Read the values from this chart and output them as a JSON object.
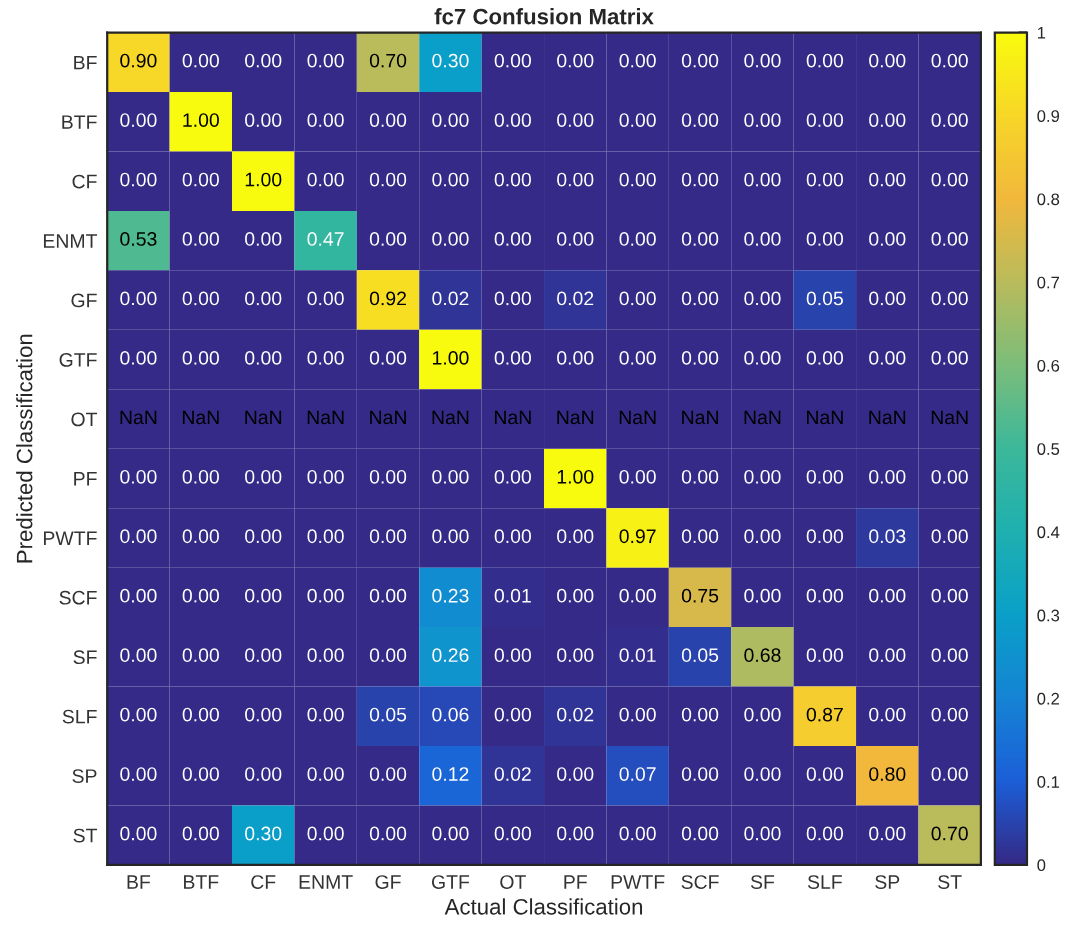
{
  "chart_data": {
    "type": "heatmap",
    "title": "fc7 Confusion Matrix",
    "xlabel": "Actual Classification",
    "ylabel": "Predicted Classification",
    "categories": [
      "BF",
      "BTF",
      "CF",
      "ENMT",
      "GF",
      "GTF",
      "OT",
      "PF",
      "PWTF",
      "SCF",
      "SF",
      "SLF",
      "SP",
      "ST"
    ],
    "y_categories": [
      "BF",
      "BTF",
      "CF",
      "ENMT",
      "GF",
      "GTF",
      "OT",
      "PF",
      "PWTF",
      "SCF",
      "SF",
      "SLF",
      "SP",
      "ST"
    ],
    "cells": [
      [
        0.9,
        0.0,
        0.0,
        0.0,
        0.7,
        0.3,
        0.0,
        0.0,
        0.0,
        0.0,
        0.0,
        0.0,
        0.0,
        0.0
      ],
      [
        0.0,
        1.0,
        0.0,
        0.0,
        0.0,
        0.0,
        0.0,
        0.0,
        0.0,
        0.0,
        0.0,
        0.0,
        0.0,
        0.0
      ],
      [
        0.0,
        0.0,
        1.0,
        0.0,
        0.0,
        0.0,
        0.0,
        0.0,
        0.0,
        0.0,
        0.0,
        0.0,
        0.0,
        0.0
      ],
      [
        0.53,
        0.0,
        0.0,
        0.47,
        0.0,
        0.0,
        0.0,
        0.0,
        0.0,
        0.0,
        0.0,
        0.0,
        0.0,
        0.0
      ],
      [
        0.0,
        0.0,
        0.0,
        0.0,
        0.92,
        0.02,
        0.0,
        0.02,
        0.0,
        0.0,
        0.0,
        0.05,
        0.0,
        0.0
      ],
      [
        0.0,
        0.0,
        0.0,
        0.0,
        0.0,
        1.0,
        0.0,
        0.0,
        0.0,
        0.0,
        0.0,
        0.0,
        0.0,
        0.0
      ],
      [
        null,
        null,
        null,
        null,
        null,
        null,
        null,
        null,
        null,
        null,
        null,
        null,
        null,
        null
      ],
      [
        0.0,
        0.0,
        0.0,
        0.0,
        0.0,
        0.0,
        0.0,
        1.0,
        0.0,
        0.0,
        0.0,
        0.0,
        0.0,
        0.0
      ],
      [
        0.0,
        0.0,
        0.0,
        0.0,
        0.0,
        0.0,
        0.0,
        0.0,
        0.97,
        0.0,
        0.0,
        0.0,
        0.03,
        0.0
      ],
      [
        0.0,
        0.0,
        0.0,
        0.0,
        0.0,
        0.23,
        0.01,
        0.0,
        0.0,
        0.75,
        0.0,
        0.0,
        0.0,
        0.0
      ],
      [
        0.0,
        0.0,
        0.0,
        0.0,
        0.0,
        0.26,
        0.0,
        0.0,
        0.01,
        0.05,
        0.68,
        0.0,
        0.0,
        0.0
      ],
      [
        0.0,
        0.0,
        0.0,
        0.0,
        0.05,
        0.06,
        0.0,
        0.02,
        0.0,
        0.0,
        0.0,
        0.87,
        0.0,
        0.0
      ],
      [
        0.0,
        0.0,
        0.0,
        0.0,
        0.0,
        0.12,
        0.02,
        0.0,
        0.07,
        0.0,
        0.0,
        0.0,
        0.8,
        0.0
      ],
      [
        0.0,
        0.0,
        0.3,
        0.0,
        0.0,
        0.0,
        0.0,
        0.0,
        0.0,
        0.0,
        0.0,
        0.0,
        0.0,
        0.7
      ]
    ],
    "cell_labels": [
      [
        "0.90",
        "0.00",
        "0.00",
        "0.00",
        "0.70",
        "0.30",
        "0.00",
        "0.00",
        "0.00",
        "0.00",
        "0.00",
        "0.00",
        "0.00",
        "0.00"
      ],
      [
        "0.00",
        "1.00",
        "0.00",
        "0.00",
        "0.00",
        "0.00",
        "0.00",
        "0.00",
        "0.00",
        "0.00",
        "0.00",
        "0.00",
        "0.00",
        "0.00"
      ],
      [
        "0.00",
        "0.00",
        "1.00",
        "0.00",
        "0.00",
        "0.00",
        "0.00",
        "0.00",
        "0.00",
        "0.00",
        "0.00",
        "0.00",
        "0.00",
        "0.00"
      ],
      [
        "0.53",
        "0.00",
        "0.00",
        "0.47",
        "0.00",
        "0.00",
        "0.00",
        "0.00",
        "0.00",
        "0.00",
        "0.00",
        "0.00",
        "0.00",
        "0.00"
      ],
      [
        "0.00",
        "0.00",
        "0.00",
        "0.00",
        "0.92",
        "0.02",
        "0.00",
        "0.02",
        "0.00",
        "0.00",
        "0.00",
        "0.05",
        "0.00",
        "0.00"
      ],
      [
        "0.00",
        "0.00",
        "0.00",
        "0.00",
        "0.00",
        "1.00",
        "0.00",
        "0.00",
        "0.00",
        "0.00",
        "0.00",
        "0.00",
        "0.00",
        "0.00"
      ],
      [
        "NaN",
        "NaN",
        "NaN",
        "NaN",
        "NaN",
        "NaN",
        "NaN",
        "NaN",
        "NaN",
        "NaN",
        "NaN",
        "NaN",
        "NaN",
        "NaN"
      ],
      [
        "0.00",
        "0.00",
        "0.00",
        "0.00",
        "0.00",
        "0.00",
        "0.00",
        "1.00",
        "0.00",
        "0.00",
        "0.00",
        "0.00",
        "0.00",
        "0.00"
      ],
      [
        "0.00",
        "0.00",
        "0.00",
        "0.00",
        "0.00",
        "0.00",
        "0.00",
        "0.00",
        "0.97",
        "0.00",
        "0.00",
        "0.00",
        "0.03",
        "0.00"
      ],
      [
        "0.00",
        "0.00",
        "0.00",
        "0.00",
        "0.00",
        "0.23",
        "0.01",
        "0.00",
        "0.00",
        "0.75",
        "0.00",
        "0.00",
        "0.00",
        "0.00"
      ],
      [
        "0.00",
        "0.00",
        "0.00",
        "0.00",
        "0.00",
        "0.26",
        "0.00",
        "0.00",
        "0.01",
        "0.05",
        "0.68",
        "0.00",
        "0.00",
        "0.00"
      ],
      [
        "0.00",
        "0.00",
        "0.00",
        "0.00",
        "0.05",
        "0.06",
        "0.00",
        "0.02",
        "0.00",
        "0.00",
        "0.00",
        "0.87",
        "0.00",
        "0.00"
      ],
      [
        "0.00",
        "0.00",
        "0.00",
        "0.00",
        "0.00",
        "0.12",
        "0.02",
        "0.00",
        "0.07",
        "0.00",
        "0.00",
        "0.00",
        "0.80",
        "0.00"
      ],
      [
        "0.00",
        "0.00",
        "0.30",
        "0.00",
        "0.00",
        "0.00",
        "0.00",
        "0.00",
        "0.00",
        "0.00",
        "0.00",
        "0.00",
        "0.00",
        "0.70"
      ]
    ],
    "clim": [
      0,
      1
    ],
    "cticks": [
      0,
      0.1,
      0.2,
      0.3,
      0.4,
      0.5,
      0.6,
      0.7,
      0.8,
      0.9,
      1
    ]
  }
}
